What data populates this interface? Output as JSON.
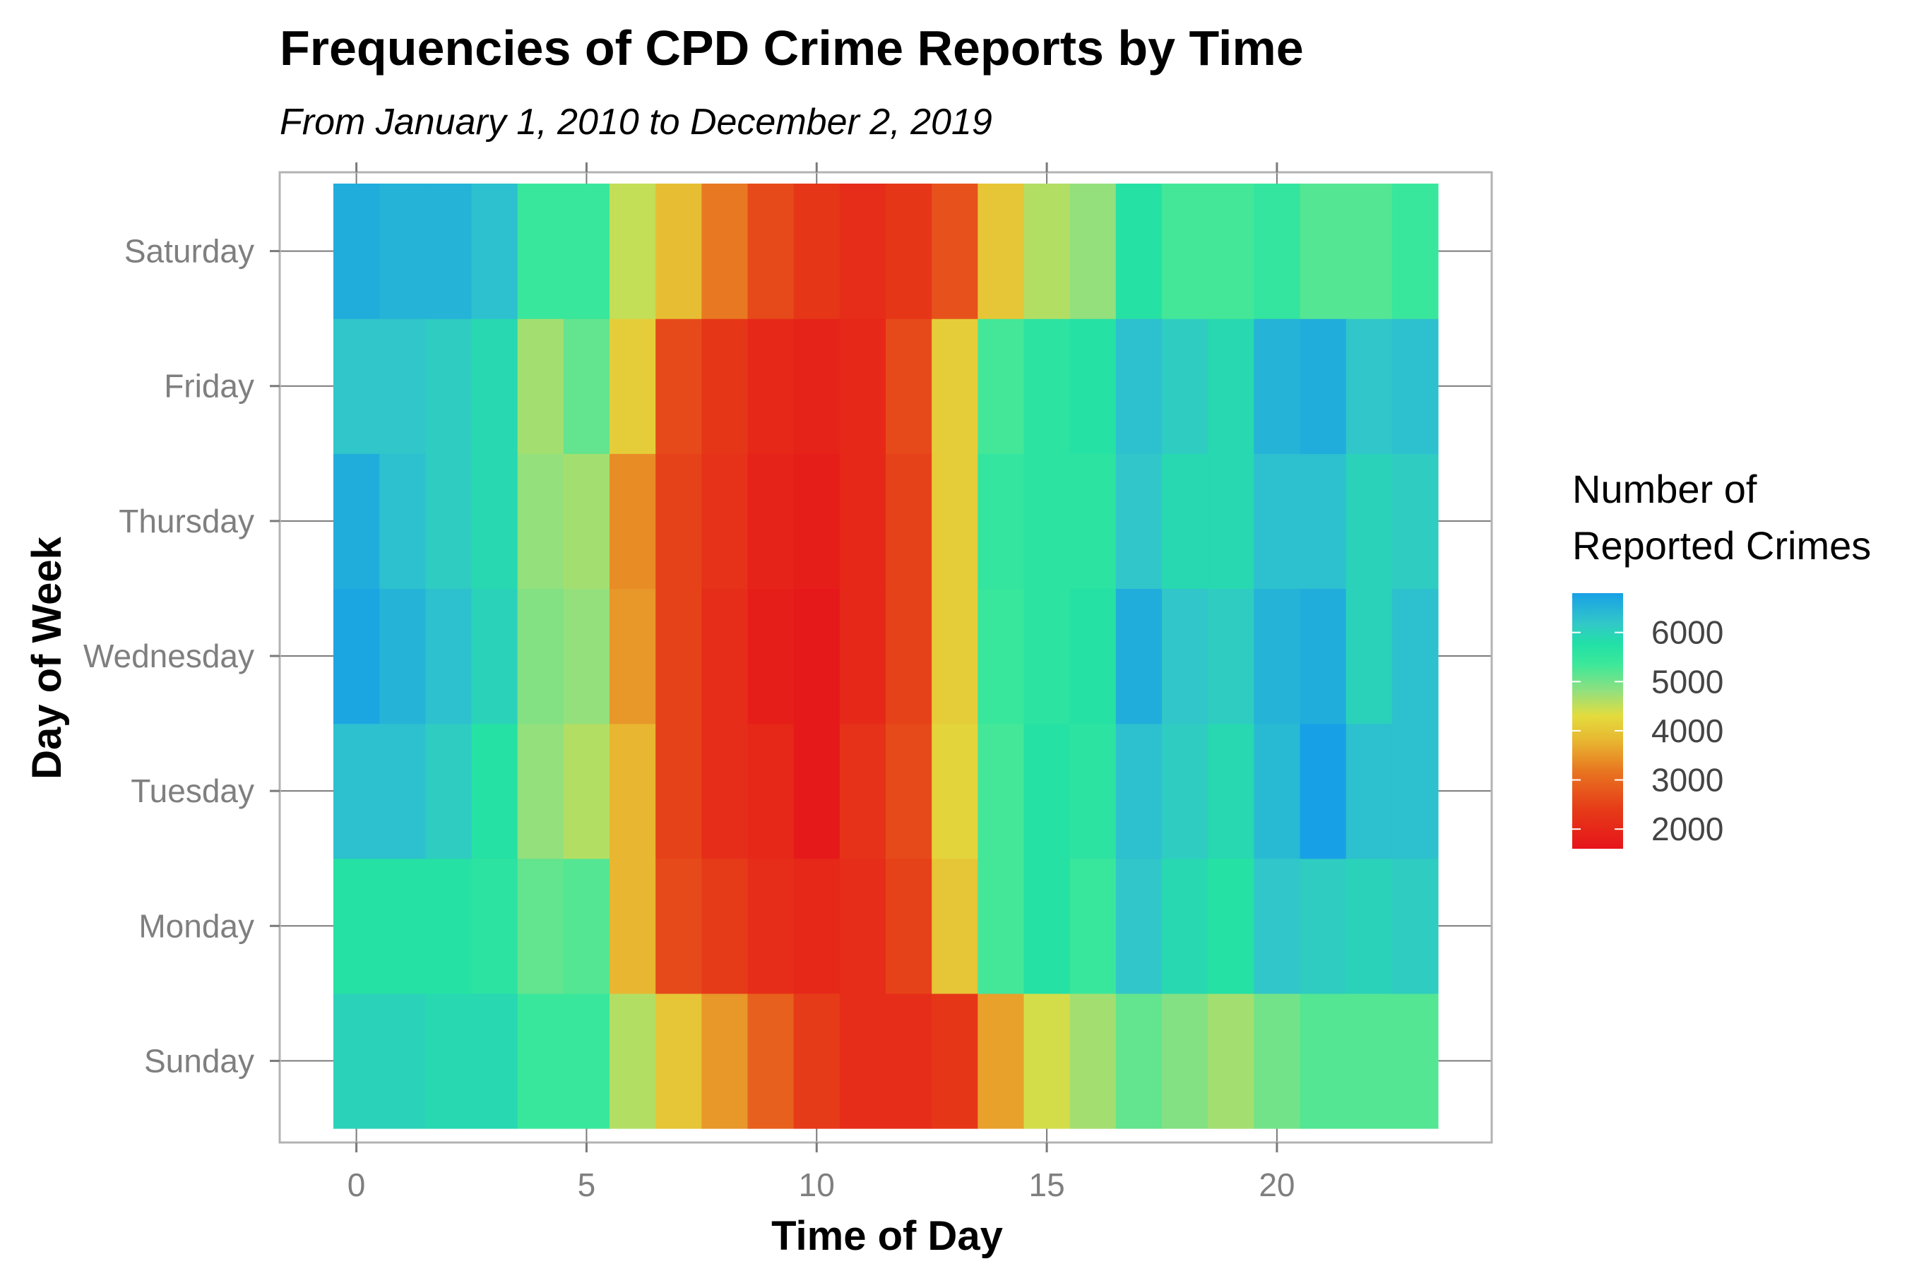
{
  "chart_data": {
    "type": "heatmap",
    "title": "Frequencies of CPD Crime Reports by Time",
    "subtitle": "From January 1, 2010 to December 2, 2019",
    "xlabel": "Time of Day",
    "ylabel": "Day of Week",
    "x": [
      0,
      1,
      2,
      3,
      4,
      5,
      6,
      7,
      8,
      9,
      10,
      11,
      12,
      13,
      14,
      15,
      16,
      17,
      18,
      19,
      20,
      21,
      22,
      23
    ],
    "x_ticks": [
      0,
      5,
      10,
      15,
      20
    ],
    "xlim": [
      -1.5,
      24.5
    ],
    "y_categories": [
      "Sunday",
      "Monday",
      "Tuesday",
      "Wednesday",
      "Thursday",
      "Friday",
      "Saturday"
    ],
    "values": [
      [
        6000,
        6000,
        5900,
        5900,
        5400,
        5400,
        4600,
        4000,
        3500,
        2900,
        2400,
        2100,
        2100,
        2300,
        3600,
        4400,
        4700,
        5100,
        4900,
        4700,
        5000,
        5200,
        5200,
        5200
      ],
      [
        5700,
        5700,
        5700,
        5600,
        5100,
        5200,
        3800,
        2600,
        2400,
        2100,
        2000,
        2100,
        2500,
        4000,
        5300,
        5700,
        5400,
        6200,
        5900,
        5700,
        6200,
        6100,
        6000,
        6100
      ],
      [
        6300,
        6300,
        6100,
        5700,
        4800,
        4600,
        3800,
        2500,
        2100,
        2000,
        1700,
        2200,
        2600,
        4200,
        5300,
        5700,
        5600,
        6300,
        6100,
        5900,
        6400,
        6800,
        6300,
        6300
      ],
      [
        6700,
        6500,
        6300,
        6000,
        4900,
        4800,
        3500,
        2500,
        2100,
        1800,
        1700,
        2000,
        2500,
        4100,
        5400,
        5600,
        5700,
        6600,
        6200,
        6100,
        6500,
        6600,
        6000,
        6300
      ],
      [
        6600,
        6300,
        6100,
        5900,
        4800,
        4700,
        3400,
        2500,
        2200,
        1900,
        1800,
        2000,
        2500,
        4100,
        5500,
        5600,
        5600,
        6200,
        5900,
        5900,
        6300,
        6300,
        6000,
        6100
      ],
      [
        6200,
        6200,
        6100,
        5900,
        4700,
        5100,
        4100,
        2600,
        2300,
        2000,
        1900,
        2000,
        2600,
        4100,
        5300,
        5600,
        5700,
        6300,
        6100,
        5900,
        6500,
        6600,
        6200,
        6300
      ],
      [
        6600,
        6500,
        6500,
        6300,
        5400,
        5400,
        4500,
        3900,
        3200,
        2600,
        2300,
        2100,
        2300,
        2700,
        4000,
        4600,
        4800,
        5700,
        5300,
        5300,
        5500,
        5200,
        5200,
        5400
      ]
    ],
    "legend": {
      "title_lines": [
        "Number of",
        "Reported Crimes"
      ],
      "ticks": [
        6000,
        5000,
        4000,
        3000,
        2000
      ],
      "range": [
        1600,
        6800
      ],
      "placement": "right"
    },
    "colorscale": [
      {
        "stop": 0.0,
        "color": "#e6141a"
      },
      {
        "stop": 0.16,
        "color": "#e63d18"
      },
      {
        "stop": 0.3,
        "color": "#e87420"
      },
      {
        "stop": 0.42,
        "color": "#e8b530"
      },
      {
        "stop": 0.52,
        "color": "#e3dc3e"
      },
      {
        "stop": 0.62,
        "color": "#8fe080"
      },
      {
        "stop": 0.72,
        "color": "#3de89a"
      },
      {
        "stop": 0.8,
        "color": "#22e0a6"
      },
      {
        "stop": 0.88,
        "color": "#32c8c8"
      },
      {
        "stop": 1.0,
        "color": "#18a0e6"
      }
    ],
    "grid": true
  }
}
